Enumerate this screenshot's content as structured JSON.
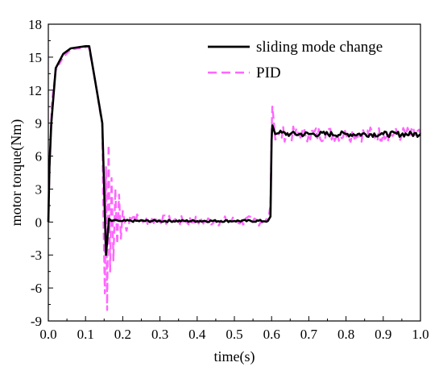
{
  "chart_data": {
    "type": "line",
    "title": "",
    "xlabel": "time(s)",
    "ylabel": "motor torque(Nm)",
    "xlim": [
      0,
      1.0
    ],
    "ylim": [
      -9,
      18
    ],
    "x_ticks": [
      "0.0",
      "0.1",
      "0.2",
      "0.3",
      "0.4",
      "0.5",
      "0.6",
      "0.7",
      "0.8",
      "0.9",
      "1.0"
    ],
    "y_ticks": [
      "-9",
      "-6",
      "-3",
      "0",
      "3",
      "6",
      "9",
      "12",
      "15",
      "18"
    ],
    "grid": false,
    "legend_position": "top-right",
    "series": [
      {
        "name": "sliding mode change",
        "color": "#000000",
        "style": "solid",
        "x": [
          0,
          0.003,
          0.008,
          0.02,
          0.04,
          0.06,
          0.08,
          0.1,
          0.11,
          0.115,
          0.13,
          0.14,
          0.145,
          0.15,
          0.155,
          0.16,
          0.163,
          0.17,
          0.18,
          0.19,
          0.2,
          0.3,
          0.4,
          0.5,
          0.59,
          0.597,
          0.6,
          0.602,
          0.61,
          0.62,
          0.65,
          0.7,
          0.8,
          0.9,
          1.0
        ],
        "y": [
          0,
          5,
          9,
          14,
          15.3,
          15.8,
          15.9,
          16.0,
          16.0,
          15.0,
          12.0,
          10.0,
          9.0,
          3.0,
          -3.0,
          -1.0,
          0.3,
          0.1,
          0.2,
          0.1,
          0.1,
          0.1,
          0.1,
          0.1,
          0.1,
          0.5,
          7.5,
          8.8,
          8.0,
          8.1,
          8.0,
          8.0,
          8.0,
          8.0,
          8.0
        ]
      },
      {
        "name": "PID",
        "color": "#ff66ff",
        "style": "dashed",
        "x": [
          0,
          0.004,
          0.01,
          0.02,
          0.04,
          0.06,
          0.08,
          0.1,
          0.108,
          0.12,
          0.13,
          0.14,
          0.145,
          0.148,
          0.152,
          0.155,
          0.158,
          0.162,
          0.166,
          0.17,
          0.175,
          0.18,
          0.185,
          0.19,
          0.195,
          0.2,
          0.21,
          0.22,
          0.25,
          0.3,
          0.35,
          0.4,
          0.45,
          0.5,
          0.55,
          0.59,
          0.597,
          0.6,
          0.602,
          0.605,
          0.61,
          0.62,
          0.65,
          0.7,
          0.75,
          0.8,
          0.85,
          0.9,
          0.95,
          1.0
        ],
        "y": [
          0,
          6,
          11,
          13.8,
          15.0,
          15.7,
          15.8,
          15.9,
          16.0,
          14.0,
          12.0,
          9.8,
          9.0,
          0.5,
          -6.5,
          5.0,
          -8.0,
          7.0,
          -4.5,
          4.0,
          -3.5,
          3.0,
          -2.0,
          2.5,
          -1.5,
          1.0,
          -0.8,
          0.6,
          0.2,
          0.2,
          0.1,
          0.1,
          0.1,
          0.1,
          0.1,
          0.1,
          1.5,
          8.0,
          10.5,
          9.5,
          7.5,
          8.0,
          8.0,
          8.0,
          8.0,
          8.0,
          8.0,
          8.0,
          8.0,
          8.0
        ]
      }
    ]
  }
}
